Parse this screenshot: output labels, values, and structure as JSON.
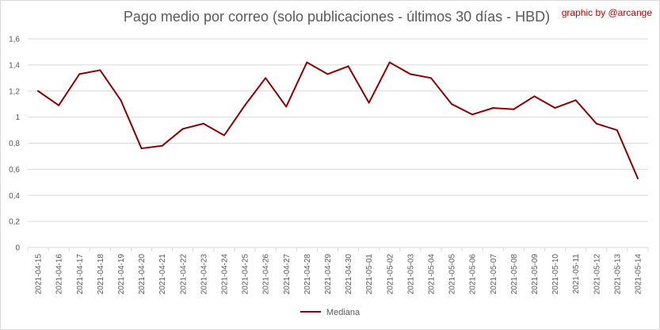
{
  "title": "Pago medio por correo (solo publicaciones - últimos 30 días - HBD)",
  "credit": "graphic by @arcange",
  "colors": {
    "line": "#8b0000",
    "credit": "#c00000",
    "grid": "#d9d9d9",
    "text": "#595959"
  },
  "chart_data": {
    "type": "line",
    "title": "Pago medio por correo (solo publicaciones - últimos 30 días - HBD)",
    "xlabel": "",
    "ylabel": "",
    "ylim": [
      0,
      1.6
    ],
    "yticks": [
      "0",
      "0,2",
      "0,4",
      "0,6",
      "0,8",
      "1",
      "1,2",
      "1,4",
      "1,6"
    ],
    "grid": true,
    "legend_position": "bottom",
    "categories": [
      "2021-04-15",
      "2021-04-16",
      "2021-04-17",
      "2021-04-18",
      "2021-04-19",
      "2021-04-20",
      "2021-04-21",
      "2021-04-22",
      "2021-04-23",
      "2021-04-24",
      "2021-04-25",
      "2021-04-26",
      "2021-04-27",
      "2021-04-28",
      "2021-04-29",
      "2021-04-30",
      "2021-05-01",
      "2021-05-02",
      "2021-05-03",
      "2021-05-04",
      "2021-05-05",
      "2021-05-06",
      "2021-05-07",
      "2021-05-08",
      "2021-05-09",
      "2021-05-10",
      "2021-05-11",
      "2021-05-12",
      "2021-05-13",
      "2021-05-14"
    ],
    "series": [
      {
        "name": "Mediana",
        "values": [
          1.2,
          1.09,
          1.33,
          1.36,
          1.13,
          0.76,
          0.78,
          0.91,
          0.95,
          0.86,
          1.09,
          1.3,
          1.08,
          1.42,
          1.33,
          1.39,
          1.11,
          1.42,
          1.33,
          1.3,
          1.1,
          1.02,
          1.07,
          1.06,
          1.16,
          1.07,
          1.13,
          0.95,
          0.9,
          0.53
        ]
      }
    ]
  }
}
